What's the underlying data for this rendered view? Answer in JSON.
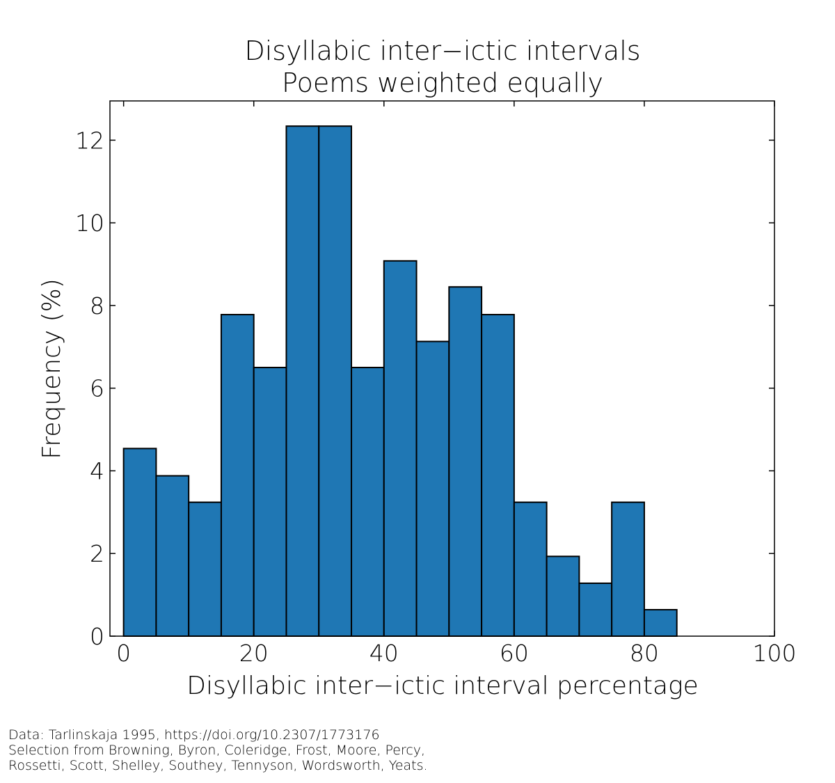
{
  "chart_data": {
    "type": "histogram",
    "title": "Disyllabic inter−ictic intervals",
    "subtitle": "Poems weighted equally",
    "x_label": "Disyllabic inter−ictic interval percentage",
    "y_label": "Frequency (%)",
    "bins": [
      0,
      5,
      10,
      15,
      20,
      25,
      30,
      35,
      40,
      45,
      50,
      55,
      60,
      65,
      70,
      75,
      80,
      85
    ],
    "values": [
      4.54,
      3.88,
      3.24,
      7.78,
      6.5,
      12.34,
      12.34,
      6.5,
      9.08,
      7.13,
      8.45,
      7.78,
      3.24,
      1.93,
      1.28,
      3.24,
      0.64
    ],
    "color": "#1f77b4",
    "xlim": [
      -2.1,
      100
    ],
    "xticks": [
      0,
      20,
      40,
      60,
      80,
      100
    ],
    "ylim": [
      0,
      12.95
    ],
    "yticks": [
      0,
      2,
      4,
      6,
      8,
      10,
      12
    ],
    "footnote": [
      "Data: Tarlinskaja 1995, https://doi.org/10.2307/1773176",
      "Selection from Browning, Byron, Coleridge, Frost, Moore, Percy,",
      "Rossetti, Scott, Shelley, Southey, Tennyson, Wordsworth, Yeats."
    ]
  }
}
